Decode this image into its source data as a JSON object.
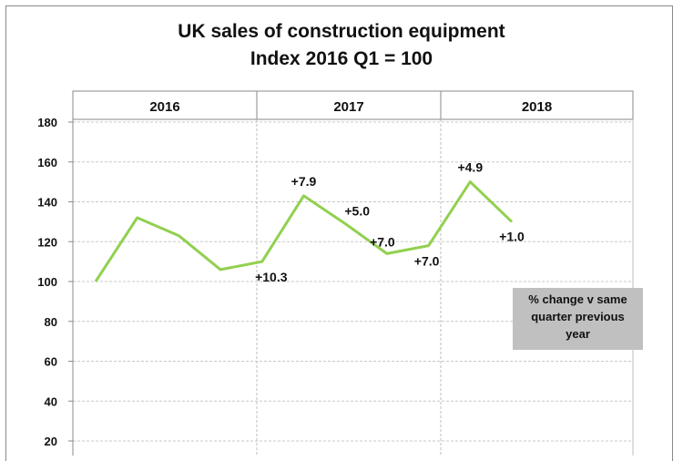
{
  "chart_data": {
    "type": "line",
    "title": "UK sales of construction equipment",
    "subtitle": "Index 2016 Q1 = 100",
    "ylim": [
      20,
      180
    ],
    "yticks": [
      20,
      40,
      60,
      80,
      100,
      120,
      140,
      160,
      180
    ],
    "year_headers": [
      "2016",
      "2017",
      "2018"
    ],
    "grid": true,
    "series": [
      {
        "color": "#92d050",
        "x": [
          "2016 Q1",
          "2016 Q2",
          "2016 Q3",
          "2016 Q4",
          "2017 Q1",
          "2017 Q2",
          "2017 Q3",
          "2017 Q4",
          "2018 Q1",
          "2018 Q2",
          "2018 Q3"
        ],
        "values": [
          100,
          132,
          123,
          106,
          110,
          143,
          129,
          114,
          118,
          150,
          130
        ]
      }
    ],
    "annotations": [
      {
        "point": 4,
        "text": "+10.3"
      },
      {
        "point": 5,
        "text": "+7.9"
      },
      {
        "point": 6,
        "text": "+5.0"
      },
      {
        "point": 7,
        "text": "+7.0"
      },
      {
        "point": 8,
        "text": "+7.0"
      },
      {
        "point": 9,
        "text": "+4.9"
      },
      {
        "point": 10,
        "text": "+1.0"
      }
    ],
    "note": [
      "% change v same",
      "quarter previous",
      "year"
    ]
  }
}
